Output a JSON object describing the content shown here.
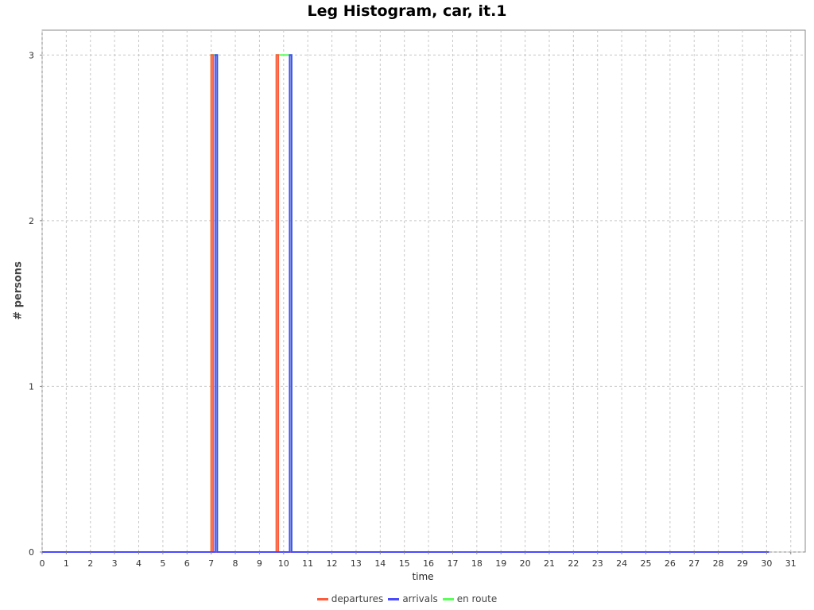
{
  "chart_data": {
    "type": "line",
    "title": "Leg Histogram, car, it.1",
    "xlabel": "time",
    "ylabel": "# persons",
    "xlim": [
      0,
      31.6
    ],
    "ylim": [
      0,
      3.15
    ],
    "x_ticks": [
      "0",
      "1",
      "2",
      "3",
      "4",
      "5",
      "6",
      "7",
      "8",
      "9",
      "10",
      "11",
      "12",
      "13",
      "14",
      "15",
      "16",
      "17",
      "18",
      "19",
      "20",
      "21",
      "22",
      "23",
      "24",
      "25",
      "26",
      "27",
      "28",
      "29",
      "30",
      "31"
    ],
    "y_ticks": [
      "0",
      "1",
      "2",
      "3"
    ],
    "grid": true,
    "legend_position": "bottom",
    "series": [
      {
        "name": "departures",
        "color": "#ff5a3c",
        "points": [
          [
            0,
            0
          ],
          [
            7.0,
            0
          ],
          [
            7.0,
            3
          ],
          [
            7.08,
            3
          ],
          [
            7.08,
            0
          ],
          [
            9.7,
            0
          ],
          [
            9.7,
            3
          ],
          [
            9.78,
            3
          ],
          [
            9.78,
            0
          ],
          [
            30.1,
            0
          ]
        ]
      },
      {
        "name": "arrivals",
        "color": "#4a4aff",
        "points": [
          [
            0,
            0
          ],
          [
            7.17,
            0
          ],
          [
            7.17,
            3
          ],
          [
            7.25,
            3
          ],
          [
            7.25,
            0
          ],
          [
            10.25,
            0
          ],
          [
            10.25,
            3
          ],
          [
            10.33,
            3
          ],
          [
            10.33,
            0
          ],
          [
            30.1,
            0
          ]
        ]
      },
      {
        "name": "en route",
        "color": "#5aff5a",
        "points": [
          [
            0,
            0
          ],
          [
            7.0,
            0
          ],
          [
            7.0,
            3
          ],
          [
            7.25,
            3
          ],
          [
            7.25,
            0
          ],
          [
            9.7,
            0
          ],
          [
            9.7,
            3
          ],
          [
            10.33,
            3
          ],
          [
            10.33,
            0
          ],
          [
            30.1,
            0
          ]
        ]
      }
    ]
  }
}
